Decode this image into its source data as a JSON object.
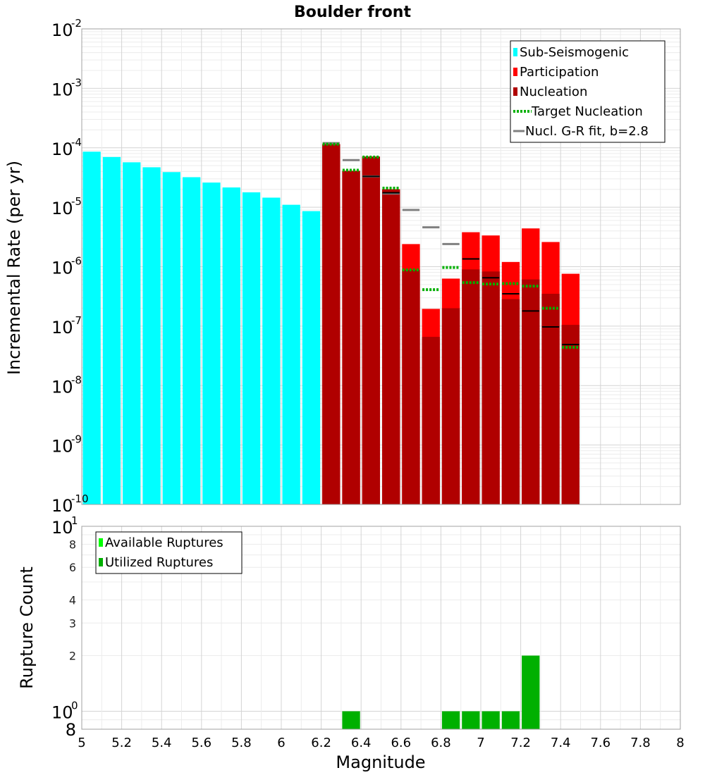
{
  "colors": {
    "sub_seismogenic": "#00ffff",
    "participation": "#ff0000",
    "nucleation": "#b00000",
    "target_nucleation": "#00b000",
    "gr_fit": "#808080",
    "available": "#00ff00",
    "utilized": "#00b000",
    "grid_major": "#d4d4d4",
    "grid_minor": "#ececec",
    "frame": "#a0a0a0"
  },
  "chart_data": [
    {
      "id": "mfd",
      "type": "bar",
      "title": "Boulder front",
      "xlabel": "Magnitude",
      "ylabel": "Incremental Rate (per yr)",
      "xlim": [
        5,
        8
      ],
      "ylim": [
        1e-10,
        0.01
      ],
      "yscale": "log",
      "bin_width": 0.1,
      "yticks": [
        {
          "value": 1e-10,
          "base": "10",
          "exp": "-10"
        },
        {
          "value": 1e-09,
          "base": "10",
          "exp": "-9"
        },
        {
          "value": 1e-08,
          "base": "10",
          "exp": "-8"
        },
        {
          "value": 1e-07,
          "base": "10",
          "exp": "-7"
        },
        {
          "value": 1e-06,
          "base": "10",
          "exp": "-6"
        },
        {
          "value": 1e-05,
          "base": "10",
          "exp": "-5"
        },
        {
          "value": 0.0001,
          "base": "10",
          "exp": "-4"
        },
        {
          "value": 0.001,
          "base": "10",
          "exp": "-3"
        },
        {
          "value": 0.01,
          "base": "10",
          "exp": "-2"
        }
      ],
      "legend": [
        {
          "label": "Sub-Seismogenic",
          "kind": "bar",
          "color_key": "sub_seismogenic"
        },
        {
          "label": "Participation",
          "kind": "bar",
          "color_key": "participation"
        },
        {
          "label": "Nucleation",
          "kind": "bar",
          "color_key": "nucleation"
        },
        {
          "label": " Target Nucleation",
          "kind": "dotted",
          "color_key": "target_nucleation"
        },
        {
          "label": "Nucl. G-R fit, b=2.8",
          "kind": "line",
          "color_key": "gr_fit"
        }
      ],
      "legend_position": "top-right",
      "series": [
        {
          "name": "Sub-Seismogenic",
          "kind": "bar",
          "x": [
            5.05,
            5.15,
            5.25,
            5.35,
            5.45,
            5.55,
            5.65,
            5.75,
            5.85,
            5.95,
            6.05,
            6.15
          ],
          "values": [
            8.6e-05,
            7e-05,
            5.7e-05,
            4.7e-05,
            3.9e-05,
            3.2e-05,
            2.6e-05,
            2.15e-05,
            1.78e-05,
            1.45e-05,
            1.1e-05,
            8.6e-06
          ]
        },
        {
          "name": "Participation",
          "kind": "bar",
          "x": [
            6.25,
            6.35,
            6.45,
            6.55,
            6.65,
            6.75,
            6.85,
            6.95,
            7.05,
            7.15,
            7.25,
            7.35,
            7.45
          ],
          "values": [
            0.000115,
            4.1e-05,
            7.1e-05,
            2e-05,
            2.4e-06,
            1.95e-07,
            6.3e-07,
            3.8e-06,
            3.35e-06,
            1.2e-06,
            4.4e-06,
            2.6e-06,
            7.6e-07
          ]
        },
        {
          "name": "Nucleation",
          "kind": "bar",
          "x": [
            6.25,
            6.35,
            6.45,
            6.55,
            6.65,
            6.75,
            6.85,
            6.95,
            7.05,
            7.15,
            7.25,
            7.35,
            7.45
          ],
          "values": [
            0.000115,
            4.1e-05,
            7.1e-05,
            2e-05,
            8.8e-07,
            6.6e-08,
            2e-07,
            9e-07,
            8.3e-07,
            2.85e-07,
            6.1e-07,
            3.5e-07,
            1.05e-07
          ]
        },
        {
          "name": "Target Nucleation",
          "kind": "marker",
          "x": [
            6.25,
            6.35,
            6.45,
            6.55,
            6.65,
            6.75,
            6.85,
            6.95,
            7.05,
            7.15,
            7.25,
            7.35,
            7.45
          ],
          "values": [
            0.000115,
            4.2e-05,
            7e-05,
            2.1e-05,
            8.8e-07,
            4.1e-07,
            9.7e-07,
            5.4e-07,
            5.1e-07,
            5.2e-07,
            4.7e-07,
            2e-07,
            4.4e-08
          ]
        },
        {
          "name": "Nucl. G-R fit, b=2.8",
          "kind": "marker",
          "x": [
            6.25,
            6.35,
            6.45,
            6.55,
            6.65,
            6.75,
            6.85
          ],
          "values": [
            0.00012,
            6.2e-05,
            3.3e-05,
            1.7e-05,
            9e-06,
            4.6e-06,
            2.4e-06
          ]
        },
        {
          "name": "Nucleation detail (black)",
          "kind": "marker",
          "x": [
            6.45,
            6.55,
            6.95,
            7.05,
            7.15,
            7.25,
            7.35,
            7.45
          ],
          "values": [
            3.3e-05,
            1.75e-05,
            1.35e-06,
            6.5e-07,
            3.5e-07,
            1.8e-07,
            9.7e-08,
            4.9e-08
          ]
        }
      ]
    },
    {
      "id": "rupture_count",
      "type": "bar",
      "title": "",
      "xlabel": "Magnitude",
      "ylabel": "Rupture Count",
      "xlim": [
        5,
        8
      ],
      "ylim": [
        0.8,
        10
      ],
      "yscale": "log",
      "bin_width": 0.1,
      "xticks": [
        "5",
        "5.2",
        "5.4",
        "5.6",
        "5.8",
        "6",
        "6.2",
        "6.4",
        "6.6",
        "6.8",
        "7",
        "7.2",
        "7.4",
        "7.6",
        "7.8",
        "8"
      ],
      "yticks_major": [
        {
          "value": 1,
          "base": "10",
          "exp": "0"
        },
        {
          "value": 10,
          "base": "10",
          "exp": "1"
        }
      ],
      "yticks_minor": [
        "2",
        "3",
        "4",
        "6",
        "8"
      ],
      "y_bottom_label": "8",
      "legend": [
        {
          "label": "Available Ruptures",
          "color_key": "available"
        },
        {
          "label": "Utilized Ruptures",
          "color_key": "utilized"
        }
      ],
      "legend_position": "top-left",
      "series": [
        {
          "name": "Utilized Ruptures",
          "x": [
            6.35,
            6.85,
            6.95,
            7.05,
            7.15,
            7.25
          ],
          "values": [
            1,
            1,
            1,
            1,
            1,
            2
          ]
        }
      ]
    }
  ]
}
